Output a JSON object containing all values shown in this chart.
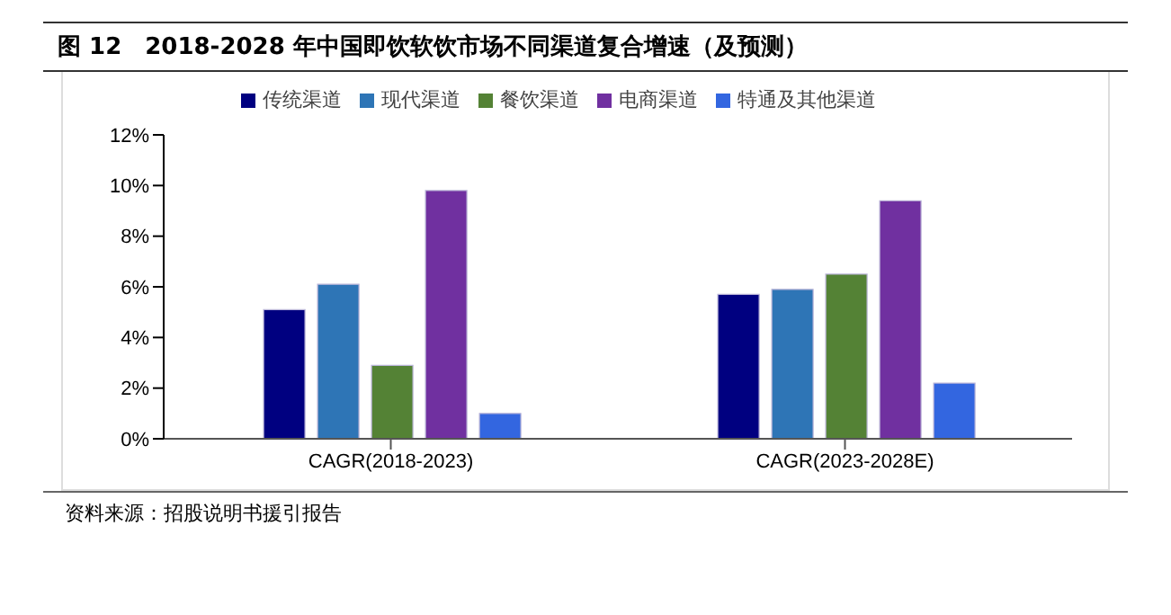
{
  "chart_data": {
    "type": "bar",
    "title": "图 12　2018-2028 年中国即饮软饮市场不同渠道复合增速（及预测）",
    "categories": [
      "CAGR(2018-2023)",
      "CAGR(2023-2028E)"
    ],
    "series": [
      {
        "name": "传统渠道",
        "color": "#000080",
        "values": [
          5.1,
          5.7
        ]
      },
      {
        "name": "现代渠道",
        "color": "#2e75b6",
        "values": [
          6.1,
          5.9
        ]
      },
      {
        "name": "餐饮渠道",
        "color": "#548235",
        "values": [
          2.9,
          6.5
        ]
      },
      {
        "name": "电商渠道",
        "color": "#7030a0",
        "values": [
          9.8,
          9.4
        ]
      },
      {
        "name": "特通及其他渠道",
        "color": "#3366e0",
        "values": [
          1.0,
          2.2
        ]
      }
    ],
    "ylim": [
      0,
      12
    ],
    "yticks": [
      {
        "value": 0,
        "label": "0%"
      },
      {
        "value": 2,
        "label": "2%"
      },
      {
        "value": 4,
        "label": "4%"
      },
      {
        "value": 6,
        "label": "6%"
      },
      {
        "value": 8,
        "label": "8%"
      },
      {
        "value": 10,
        "label": "10%"
      },
      {
        "value": 12,
        "label": "12%"
      }
    ],
    "grid": false,
    "legend": "top",
    "annotations": [
      "资料来源：招股说明书援引报告"
    ]
  }
}
